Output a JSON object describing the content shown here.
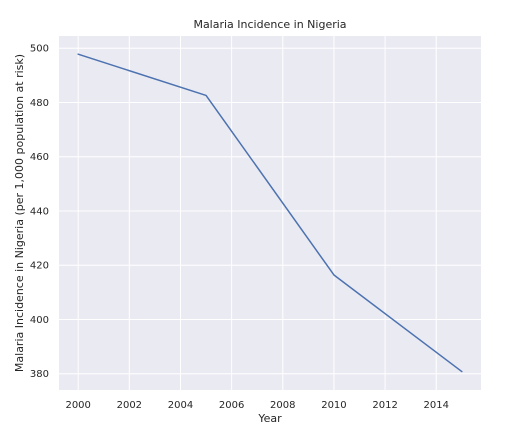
{
  "chart_data": {
    "type": "line",
    "title": "Malaria Incidence in Nigeria",
    "xlabel": "Year",
    "ylabel": "Malaria Incidence in Nigeria (per 1,000 population at risk)",
    "x": [
      2000,
      2005,
      2010,
      2015
    ],
    "series": [
      {
        "values": [
          497.8,
          482.6,
          416.4,
          380.8
        ]
      }
    ],
    "xlim": [
      1999.25,
      2015.75
    ],
    "ylim": [
      374.0,
      504.5
    ],
    "xticks": [
      2000,
      2002,
      2004,
      2006,
      2008,
      2010,
      2012,
      2014
    ],
    "yticks": [
      380,
      400,
      420,
      440,
      460,
      480,
      500
    ],
    "grid": true,
    "colors": {
      "background": "#eaeaf2",
      "grid": "#ffffff",
      "line": "#4c72b0"
    }
  }
}
